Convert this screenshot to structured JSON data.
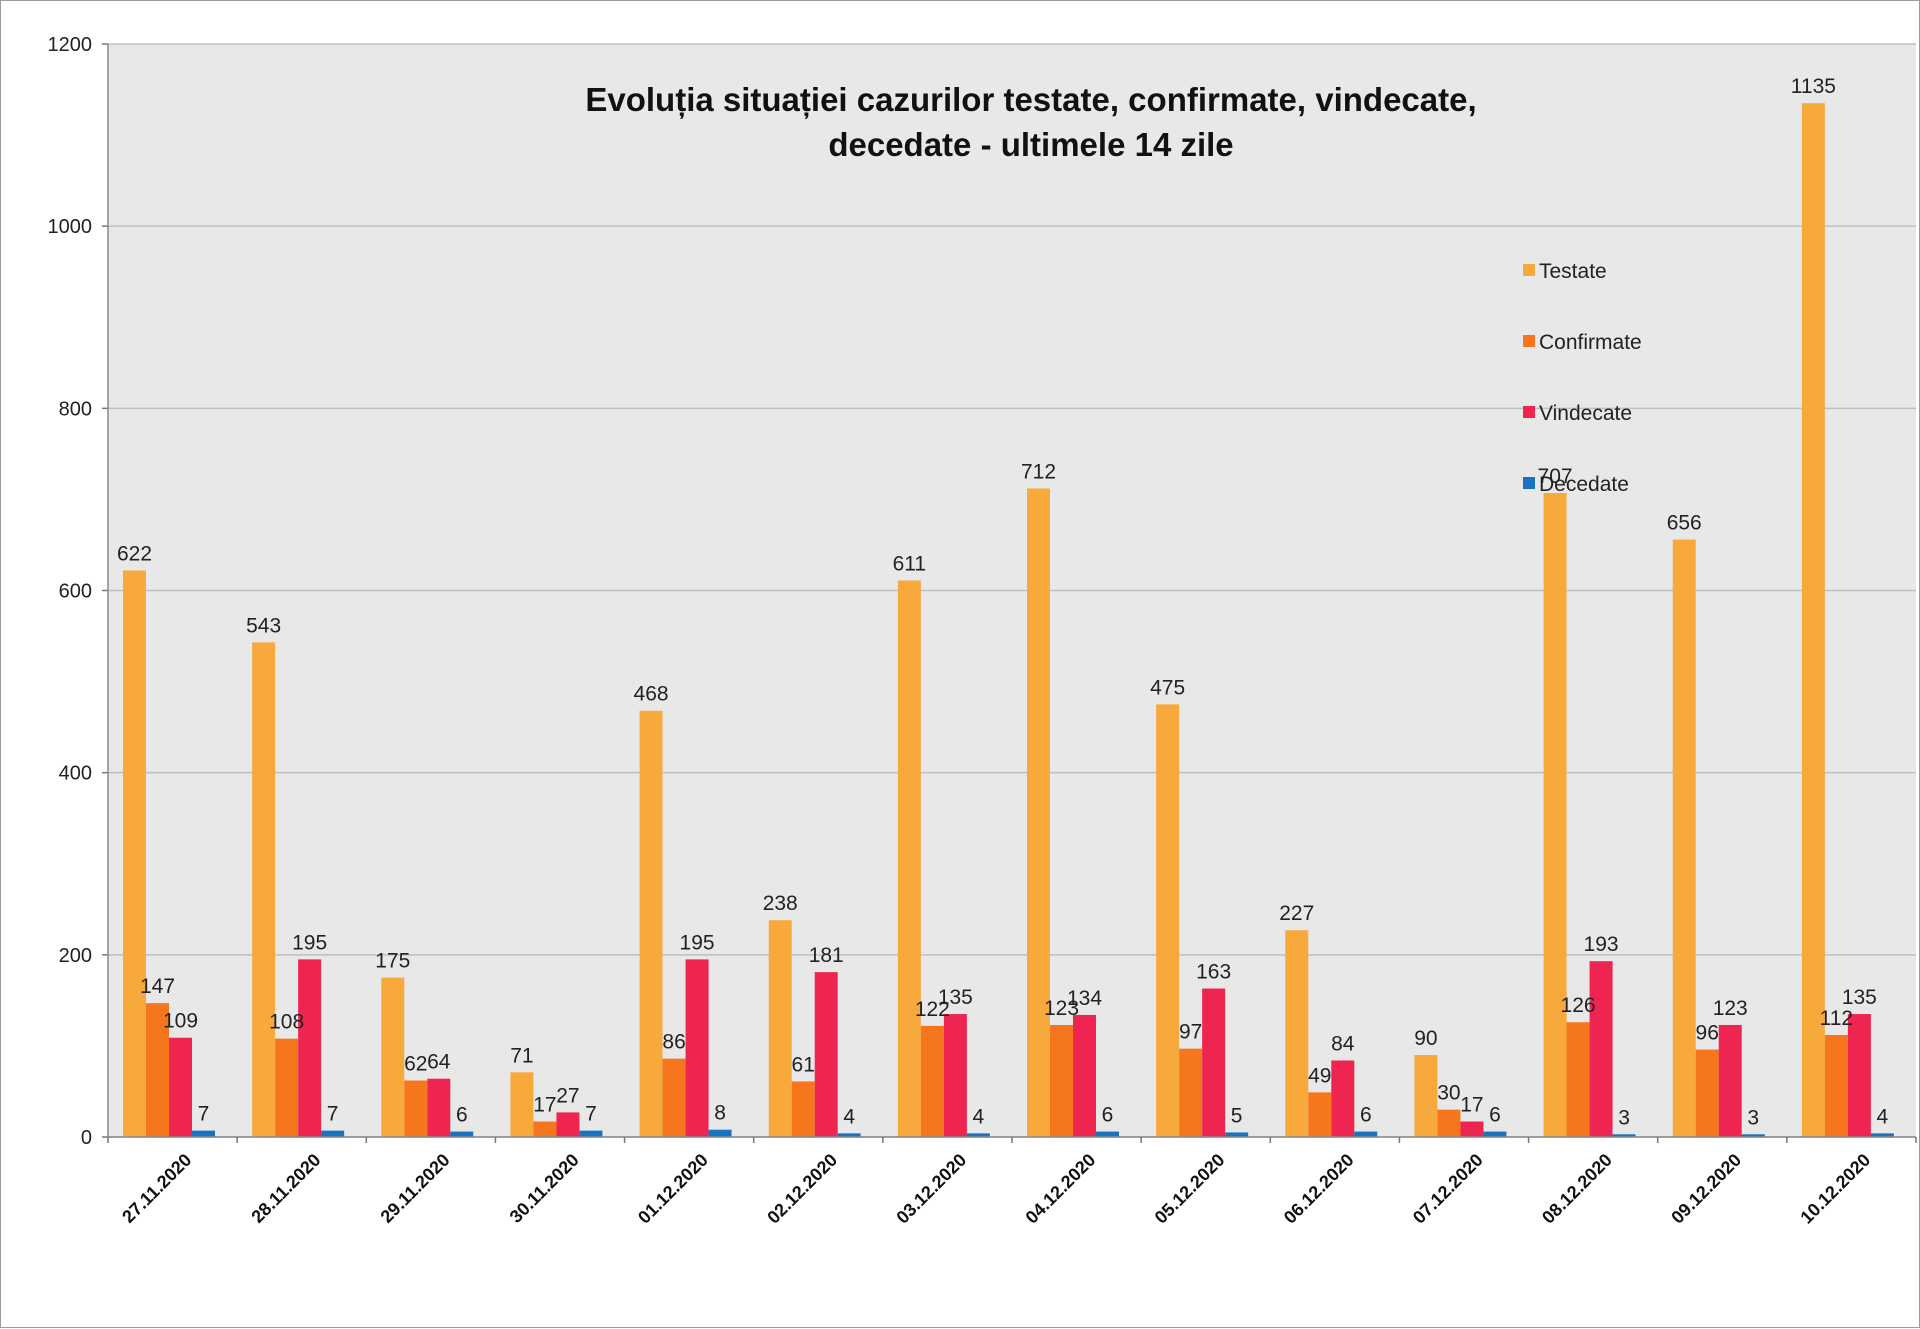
{
  "chart_data": {
    "type": "bar",
    "title_lines": [
      "Evoluția situației cazurilor testate, confirmate, vindecate,",
      "decedate -  ultimele 14 zile"
    ],
    "categories": [
      "27.11.2020",
      "28.11.2020",
      "29.11.2020",
      "30.11.2020",
      "01.12.2020",
      "02.12.2020",
      "03.12.2020",
      "04.12.2020",
      "05.12.2020",
      "06.12.2020",
      "07.12.2020",
      "08.12.2020",
      "09.12.2020",
      "10.12.2020"
    ],
    "series": [
      {
        "name": "Testate",
        "color": "#f7a93b",
        "values": [
          622,
          543,
          175,
          71,
          468,
          238,
          611,
          712,
          475,
          227,
          90,
          707,
          656,
          1135
        ]
      },
      {
        "name": "Confirmate",
        "color": "#f5761d",
        "values": [
          147,
          108,
          62,
          17,
          86,
          61,
          122,
          123,
          97,
          49,
          30,
          126,
          96,
          112
        ]
      },
      {
        "name": "Vindecate",
        "color": "#ee2550",
        "values": [
          109,
          195,
          64,
          27,
          195,
          181,
          135,
          134,
          163,
          84,
          17,
          193,
          123,
          135
        ]
      },
      {
        "name": "Decedate",
        "color": "#1a73c0",
        "values": [
          7,
          7,
          6,
          7,
          8,
          4,
          4,
          6,
          5,
          6,
          6,
          3,
          3,
          4
        ]
      }
    ],
    "ylim": [
      0,
      1200
    ],
    "yticks": [
      0,
      200,
      400,
      600,
      800,
      1000,
      1200
    ],
    "grid": true,
    "legend_position": "right",
    "plot_background": "#e8e8e8",
    "grid_color": "#bfbfbf",
    "xlabel": "",
    "ylabel": ""
  }
}
